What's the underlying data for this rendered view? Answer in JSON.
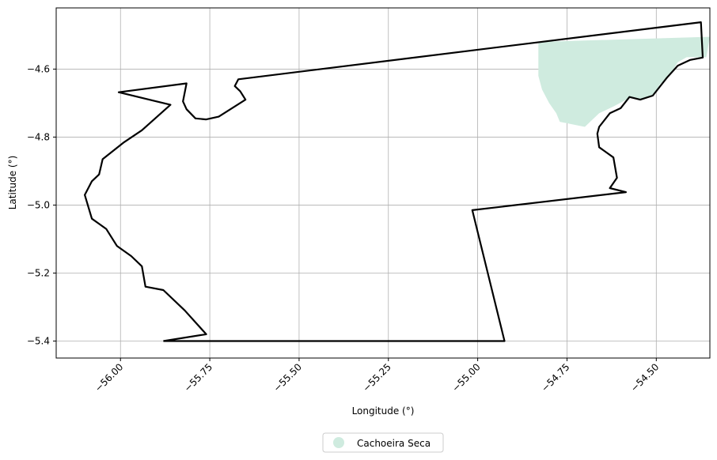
{
  "chart_data": {
    "type": "map",
    "xlabel": "Longitude (°)",
    "ylabel": "Latitude (°)",
    "xlim": [
      -56.18,
      -54.35
    ],
    "ylim": [
      -5.45,
      -4.42
    ],
    "grid": true,
    "xticks": [
      {
        "value": -56.0,
        "label": "−56.00"
      },
      {
        "value": -55.75,
        "label": "−55.75"
      },
      {
        "value": -55.5,
        "label": "−55.50"
      },
      {
        "value": -55.25,
        "label": "−55.25"
      },
      {
        "value": -55.0,
        "label": "−55.00"
      },
      {
        "value": -54.75,
        "label": "−54.75"
      },
      {
        "value": -54.5,
        "label": "−54.50"
      }
    ],
    "yticks": [
      {
        "value": -4.6,
        "label": "−4.6"
      },
      {
        "value": -4.8,
        "label": "−4.8"
      },
      {
        "value": -5.0,
        "label": "−5.0"
      },
      {
        "value": -5.2,
        "label": "−5.2"
      },
      {
        "value": -5.4,
        "label": "−5.4"
      }
    ],
    "legend": {
      "placement": "bottom-center",
      "entries": [
        {
          "label": "Cachoeira Seca",
          "color": "#cfebdf"
        }
      ]
    },
    "fill_color": "#cfebdf",
    "outline_color": "#000000",
    "filled_area": [
      [
        -54.83,
        -4.52
      ],
      [
        -54.83,
        -4.62
      ],
      [
        -54.82,
        -4.66
      ],
      [
        -54.8,
        -4.7
      ],
      [
        -54.78,
        -4.73
      ],
      [
        -54.77,
        -4.755
      ],
      [
        -54.7,
        -4.77
      ],
      [
        -54.66,
        -4.73
      ],
      [
        -54.62,
        -4.71
      ],
      [
        -54.575,
        -4.685
      ],
      [
        -54.54,
        -4.69
      ],
      [
        -54.51,
        -4.68
      ],
      [
        -54.49,
        -4.645
      ],
      [
        -54.46,
        -4.615
      ],
      [
        -54.44,
        -4.58
      ],
      [
        -54.415,
        -4.565
      ],
      [
        -54.36,
        -4.565
      ],
      [
        -54.35,
        -4.505
      ]
    ],
    "outline": [
      [
        -55.88,
        -5.4
      ],
      [
        -55.76,
        -5.38
      ],
      [
        -55.82,
        -5.31
      ],
      [
        -55.88,
        -5.25
      ],
      [
        -55.93,
        -5.24
      ],
      [
        -55.94,
        -5.18
      ],
      [
        -55.97,
        -5.15
      ],
      [
        -56.01,
        -5.12
      ],
      [
        -56.04,
        -5.07
      ],
      [
        -56.08,
        -5.04
      ],
      [
        -56.1,
        -4.97
      ],
      [
        -56.08,
        -4.93
      ],
      [
        -56.06,
        -4.91
      ],
      [
        -56.05,
        -4.865
      ],
      [
        -55.99,
        -4.815
      ],
      [
        -55.94,
        -4.78
      ],
      [
        -55.86,
        -4.705
      ],
      [
        -56.005,
        -4.668
      ],
      [
        -55.815,
        -4.642
      ],
      [
        -55.825,
        -4.695
      ],
      [
        -55.815,
        -4.718
      ],
      [
        -55.79,
        -4.745
      ],
      [
        -55.76,
        -4.748
      ],
      [
        -55.725,
        -4.74
      ],
      [
        -55.65,
        -4.69
      ],
      [
        -55.665,
        -4.665
      ],
      [
        -55.68,
        -4.65
      ],
      [
        -55.67,
        -4.63
      ],
      [
        -54.375,
        -4.462
      ],
      [
        -54.37,
        -4.566
      ],
      [
        -54.405,
        -4.573
      ],
      [
        -54.44,
        -4.59
      ],
      [
        -54.47,
        -4.625
      ],
      [
        -54.51,
        -4.678
      ],
      [
        -54.545,
        -4.69
      ],
      [
        -54.575,
        -4.682
      ],
      [
        -54.6,
        -4.715
      ],
      [
        -54.63,
        -4.73
      ],
      [
        -54.66,
        -4.77
      ],
      [
        -54.665,
        -4.79
      ],
      [
        -54.66,
        -4.83
      ],
      [
        -54.62,
        -4.86
      ],
      [
        -54.61,
        -4.92
      ],
      [
        -54.63,
        -4.95
      ],
      [
        -54.585,
        -4.962
      ],
      [
        -55.015,
        -5.015
      ],
      [
        -54.925,
        -5.4
      ],
      [
        -55.88,
        -5.4
      ]
    ]
  }
}
